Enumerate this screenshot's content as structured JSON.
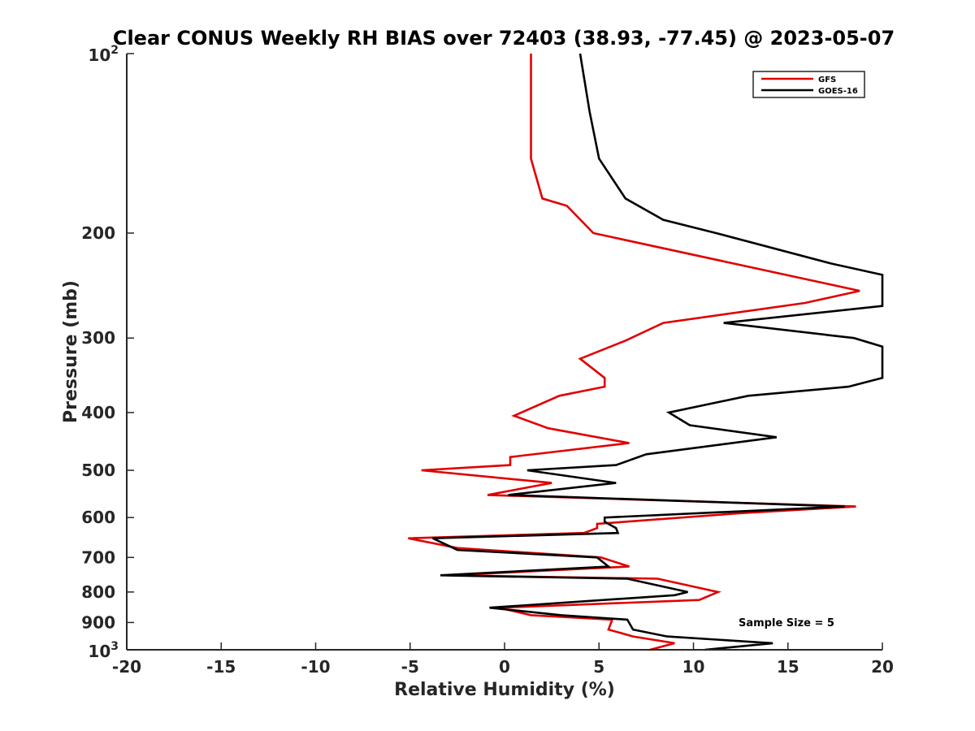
{
  "chart_data": {
    "type": "line",
    "title": "Clear CONUS Weekly RH BIAS over 72403 (38.93, -77.45) @ 2023-05-07",
    "xlabel": "Relative Humidity (%)",
    "ylabel": "Pressure (mb)",
    "xlim": [
      -20,
      20
    ],
    "ylim": [
      100,
      1000
    ],
    "yscale": "log",
    "y_reversed": true,
    "xticks": [
      "-20",
      "-15",
      "-10",
      "-5",
      "0",
      "5",
      "10",
      "15",
      "20"
    ],
    "yticks": [
      {
        "value": 100,
        "base": "10",
        "exp": "2"
      },
      {
        "value": 200,
        "label": "200"
      },
      {
        "value": 300,
        "label": "300"
      },
      {
        "value": 400,
        "label": "400"
      },
      {
        "value": 500,
        "label": "500"
      },
      {
        "value": 600,
        "label": "600"
      },
      {
        "value": 700,
        "label": "700"
      },
      {
        "value": 800,
        "label": "800"
      },
      {
        "value": 900,
        "label": "900"
      },
      {
        "value": 1000,
        "base": "10",
        "exp": "3"
      }
    ],
    "grid": false,
    "legend_position": "top-right",
    "annotation": "Sample Size = 5",
    "series": [
      {
        "name": "GFS",
        "color": "#e00000",
        "points": [
          [
            1.4,
            100
          ],
          [
            1.4,
            125
          ],
          [
            1.4,
            150
          ],
          [
            2.0,
            175
          ],
          [
            3.3,
            180
          ],
          [
            4.7,
            200
          ],
          [
            18.8,
            250
          ],
          [
            15.9,
            262
          ],
          [
            8.4,
            283
          ],
          [
            6.4,
            303
          ],
          [
            4.0,
            325
          ],
          [
            5.3,
            350
          ],
          [
            5.3,
            362
          ],
          [
            2.9,
            375
          ],
          [
            0.5,
            405
          ],
          [
            2.3,
            425
          ],
          [
            6.6,
            450
          ],
          [
            0.3,
            475
          ],
          [
            0.3,
            490
          ],
          [
            -4.4,
            500
          ],
          [
            2.5,
            525
          ],
          [
            -0.9,
            550
          ],
          [
            18.6,
            575
          ],
          [
            12.5,
            590
          ],
          [
            4.9,
            615
          ],
          [
            4.9,
            625
          ],
          [
            4.2,
            637
          ],
          [
            -5.1,
            650
          ],
          [
            -2.5,
            675
          ],
          [
            5.1,
            700
          ],
          [
            6.6,
            725
          ],
          [
            -2.9,
            750
          ],
          [
            8.1,
            760
          ],
          [
            11.3,
            800
          ],
          [
            10.3,
            825
          ],
          [
            -0.3,
            850
          ],
          [
            1.4,
            875
          ],
          [
            5.7,
            890
          ],
          [
            5.5,
            925
          ],
          [
            6.8,
            950
          ],
          [
            9.0,
            975
          ],
          [
            7.7,
            1000
          ]
        ]
      },
      {
        "name": "GOES-16",
        "color": "#000000",
        "points": [
          [
            4.0,
            100
          ],
          [
            4.5,
            125
          ],
          [
            5.0,
            150
          ],
          [
            6.4,
            175
          ],
          [
            8.4,
            190
          ],
          [
            11.2,
            200
          ],
          [
            17.3,
            225
          ],
          [
            20,
            235
          ],
          [
            20,
            265
          ],
          [
            11.6,
            283
          ],
          [
            18.5,
            300
          ],
          [
            20,
            310
          ],
          [
            20,
            350
          ],
          [
            18.2,
            362
          ],
          [
            12.9,
            375
          ],
          [
            8.7,
            400
          ],
          [
            9.8,
            420
          ],
          [
            14.4,
            440
          ],
          [
            7.5,
            470
          ],
          [
            5.9,
            490
          ],
          [
            1.2,
            500
          ],
          [
            5.9,
            525
          ],
          [
            0.2,
            550
          ],
          [
            18.0,
            575
          ],
          [
            5.3,
            600
          ],
          [
            5.3,
            610
          ],
          [
            5.9,
            625
          ],
          [
            6.0,
            637
          ],
          [
            -3.8,
            650
          ],
          [
            -2.5,
            680
          ],
          [
            4.9,
            700
          ],
          [
            5.5,
            725
          ],
          [
            -3.4,
            750
          ],
          [
            6.5,
            760
          ],
          [
            9.7,
            800
          ],
          [
            9.0,
            810
          ],
          [
            -0.8,
            850
          ],
          [
            3.0,
            875
          ],
          [
            6.5,
            890
          ],
          [
            6.8,
            925
          ],
          [
            8.6,
            950
          ],
          [
            14.2,
            975
          ],
          [
            10.6,
            1000
          ]
        ]
      }
    ]
  }
}
